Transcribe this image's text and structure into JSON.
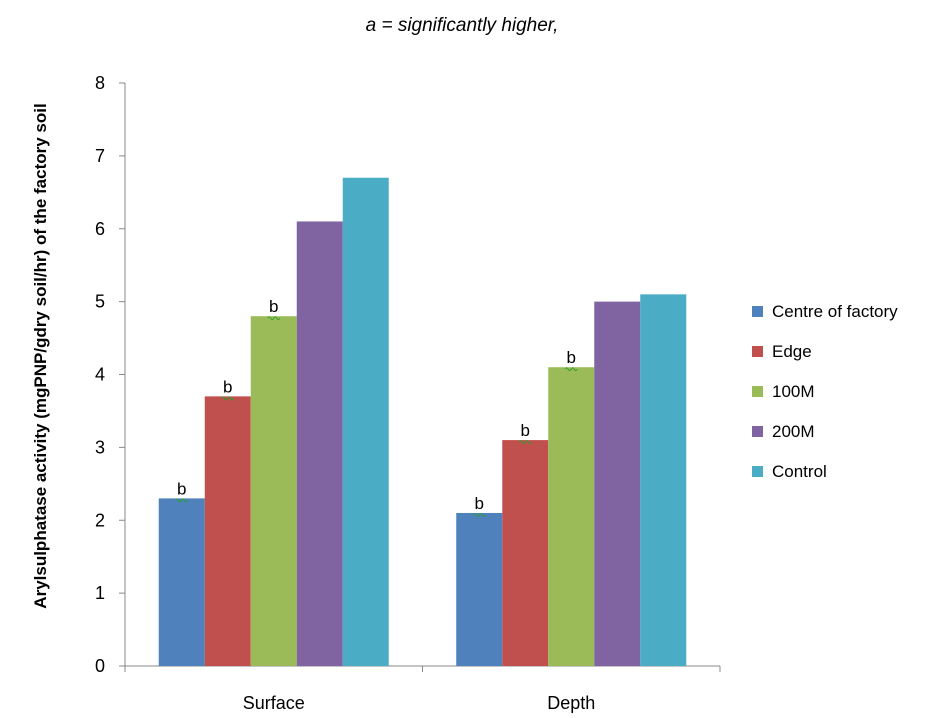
{
  "chart_data": {
    "type": "bar",
    "title": "a = significantly higher,",
    "xlabel": "",
    "ylabel": "Arylsulphatase activity (mgPNP/gdry soil/hr) of the factory soil",
    "ylim": [
      0,
      8
    ],
    "yticks": [
      0,
      1,
      2,
      3,
      4,
      5,
      6,
      7,
      8
    ],
    "grid": false,
    "legend_position": "right",
    "categories": [
      "Surface",
      "Depth"
    ],
    "series": [
      {
        "name": "Centre of factory",
        "color": "#4F81BD",
        "values": [
          2.3,
          2.1
        ],
        "annotations": [
          "b",
          "b"
        ]
      },
      {
        "name": "Edge",
        "color": "#C0504D",
        "values": [
          3.7,
          3.1
        ],
        "annotations": [
          "b",
          "b"
        ]
      },
      {
        "name": "100M",
        "color": "#9BBB59",
        "values": [
          4.8,
          4.1
        ],
        "annotations": [
          "b",
          "b"
        ]
      },
      {
        "name": "200M",
        "color": "#8064A2",
        "values": [
          6.1,
          5.0
        ],
        "annotations": [
          "",
          ""
        ]
      },
      {
        "name": "Control",
        "color": "#4BACC6",
        "values": [
          6.7,
          5.1
        ],
        "annotations": [
          "",
          ""
        ]
      }
    ]
  }
}
